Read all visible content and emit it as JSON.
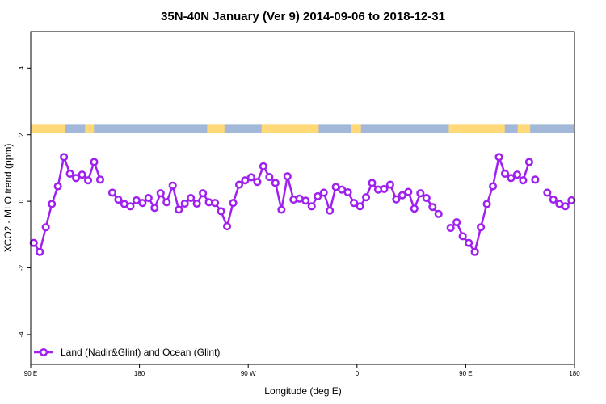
{
  "chart_data": {
    "type": "line",
    "title": "35N-40N January (Ver 9)   2014-09-06 to 2018-12-31",
    "xlabel": "Longitude (deg E)",
    "ylabel": "XCO2 - MLO trend (ppm)",
    "x_ticks": [
      {
        "value": 90,
        "label": "90 E"
      },
      {
        "value": 180,
        "label": "180"
      },
      {
        "value": 270,
        "label": "90 W"
      },
      {
        "value": 360,
        "label": "0"
      },
      {
        "value": 450,
        "label": "90 E"
      },
      {
        "value": 540,
        "label": "180"
      }
    ],
    "y_ticks": [
      {
        "value": -4,
        "label": "-4"
      },
      {
        "value": -2,
        "label": "-2"
      },
      {
        "value": 0,
        "label": "0"
      },
      {
        "value": 2,
        "label": "2"
      },
      {
        "value": 4,
        "label": "4"
      }
    ],
    "xlim": [
      90,
      540
    ],
    "ylim": [
      -4.9,
      5.1
    ],
    "grid": false,
    "legend": {
      "position": "bottom-left",
      "entries": [
        "Land (Nadir&Glint) and Ocean (Glint)"
      ]
    },
    "colors": {
      "series": "#a020f0",
      "marker_fill": "#ffffff",
      "land": "#ffd978",
      "ocean": "#a3b8d8",
      "axis": "#000000"
    },
    "land_ocean_strip": {
      "y_range": [
        2.05,
        2.3
      ],
      "land_segments": [
        [
          90,
          118
        ],
        [
          135,
          142
        ],
        [
          236,
          250
        ],
        [
          281,
          328
        ],
        [
          355,
          363
        ],
        [
          436,
          482
        ],
        [
          493,
          503
        ]
      ],
      "ocean_segments": [
        [
          118,
          135
        ],
        [
          142,
          236
        ],
        [
          250,
          281
        ],
        [
          328,
          355
        ],
        [
          363,
          436
        ],
        [
          482,
          493
        ],
        [
          503,
          540
        ]
      ]
    },
    "series": [
      {
        "name": "Land (Nadir&Glint) and Ocean (Glint)",
        "segments": [
          {
            "x": [
              92.5,
              97.5,
              102.5,
              107.5,
              112.5,
              117.5,
              122.5,
              127.5,
              132.5,
              137.5,
              142.5,
              147.5
            ],
            "y": [
              -1.25,
              -1.52,
              -0.78,
              -0.08,
              0.45,
              1.33,
              0.83,
              0.7,
              0.8,
              0.63,
              1.18,
              0.65
            ]
          },
          {
            "x": [
              157.5,
              162.5,
              167.5,
              172.5,
              177.5,
              182.5,
              187.5,
              192.5,
              197.5,
              202.5,
              207.5,
              212.5,
              217.5,
              222.5,
              227.5,
              232.5,
              237.5,
              242.5,
              247.5,
              252.5,
              257.5,
              262.5,
              267.5,
              272.5,
              277.5,
              282.5,
              287.5,
              292.5,
              297.5,
              302.5,
              307.5,
              312.5,
              317.5,
              322.5,
              327.5,
              332.5,
              337.5,
              342.5,
              347.5,
              352.5,
              357.5,
              362.5,
              367.5,
              372.5,
              377.5,
              382.5,
              387.5,
              392.5,
              397.5,
              402.5,
              407.5,
              412.5,
              417.5,
              422.5,
              427.5
            ],
            "y": [
              0.26,
              0.05,
              -0.08,
              -0.15,
              0.03,
              -0.05,
              0.1,
              -0.2,
              0.24,
              -0.03,
              0.47,
              -0.25,
              -0.07,
              0.1,
              -0.07,
              0.24,
              -0.03,
              -0.05,
              -0.3,
              -0.75,
              -0.05,
              0.5,
              0.63,
              0.72,
              0.58,
              1.05,
              0.73,
              0.55,
              -0.25,
              0.75,
              0.05,
              0.08,
              0.02,
              -0.15,
              0.15,
              0.26,
              -0.28,
              0.43,
              0.35,
              0.27,
              -0.05,
              -0.15,
              0.12,
              0.55,
              0.35,
              0.37,
              0.5,
              0.06,
              0.18,
              0.28,
              -0.22,
              0.24,
              0.1,
              -0.17,
              -0.38
            ]
          },
          {
            "x": [
              437.5,
              442.5,
              447.5,
              452.5,
              457.5,
              462.5,
              467.5,
              472.5,
              477.5,
              482.5,
              487.5,
              492.5,
              497.5,
              502.5
            ],
            "y": [
              -0.8,
              -0.63,
              -1.05,
              -1.25,
              -1.52,
              -0.78,
              -0.08,
              0.45,
              1.33,
              0.83,
              0.7,
              0.8,
              0.63,
              1.18
            ]
          },
          {
            "x": [
              507.5
            ],
            "y": [
              0.65
            ]
          },
          {
            "x": [
              517.5,
              522.5,
              527.5,
              532.5,
              537.5
            ],
            "y": [
              0.26,
              0.05,
              -0.08,
              -0.15,
              0.03
            ]
          }
        ]
      }
    ]
  }
}
